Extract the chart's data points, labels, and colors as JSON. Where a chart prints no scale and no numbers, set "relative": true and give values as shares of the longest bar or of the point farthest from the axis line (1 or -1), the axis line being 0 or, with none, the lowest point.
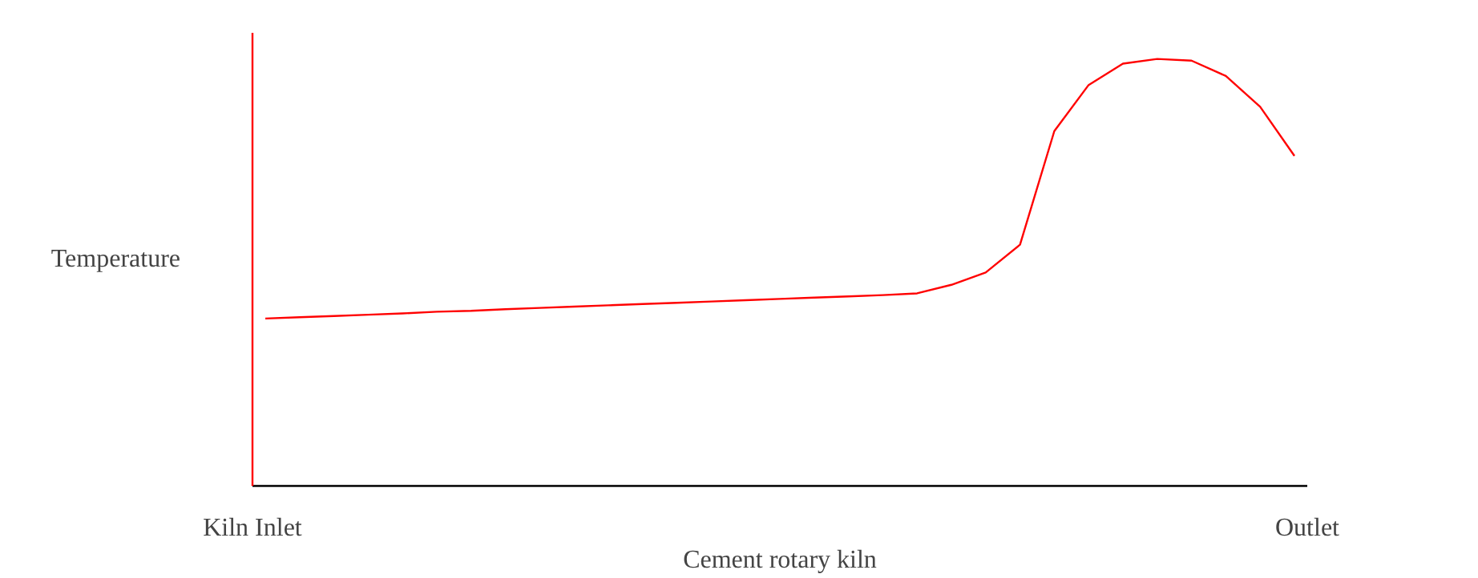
{
  "chart_data": {
    "type": "line",
    "relative": true,
    "xlabel": "Cement rotary kiln",
    "ylabel": "Temperature",
    "annotations": [
      "Kiln Inlet",
      "Outlet"
    ],
    "categories": [
      null,
      null,
      null,
      null,
      null,
      null,
      null,
      null,
      null,
      null,
      null,
      null,
      null,
      null,
      null,
      null,
      null,
      null,
      null,
      null,
      null,
      null,
      null,
      null,
      null,
      null,
      null,
      null,
      null,
      null,
      null
    ],
    "values": [
      0.392,
      0.395,
      0.398,
      0.401,
      0.404,
      0.408,
      0.41,
      0.414,
      0.417,
      0.42,
      0.423,
      0.426,
      0.429,
      0.432,
      0.435,
      0.438,
      0.441,
      0.444,
      0.447,
      0.451,
      0.471,
      0.5,
      0.565,
      0.831,
      0.939,
      0.989,
      1.0,
      0.996,
      0.96,
      0.888,
      0.773
    ],
    "color": "#ff0000"
  }
}
